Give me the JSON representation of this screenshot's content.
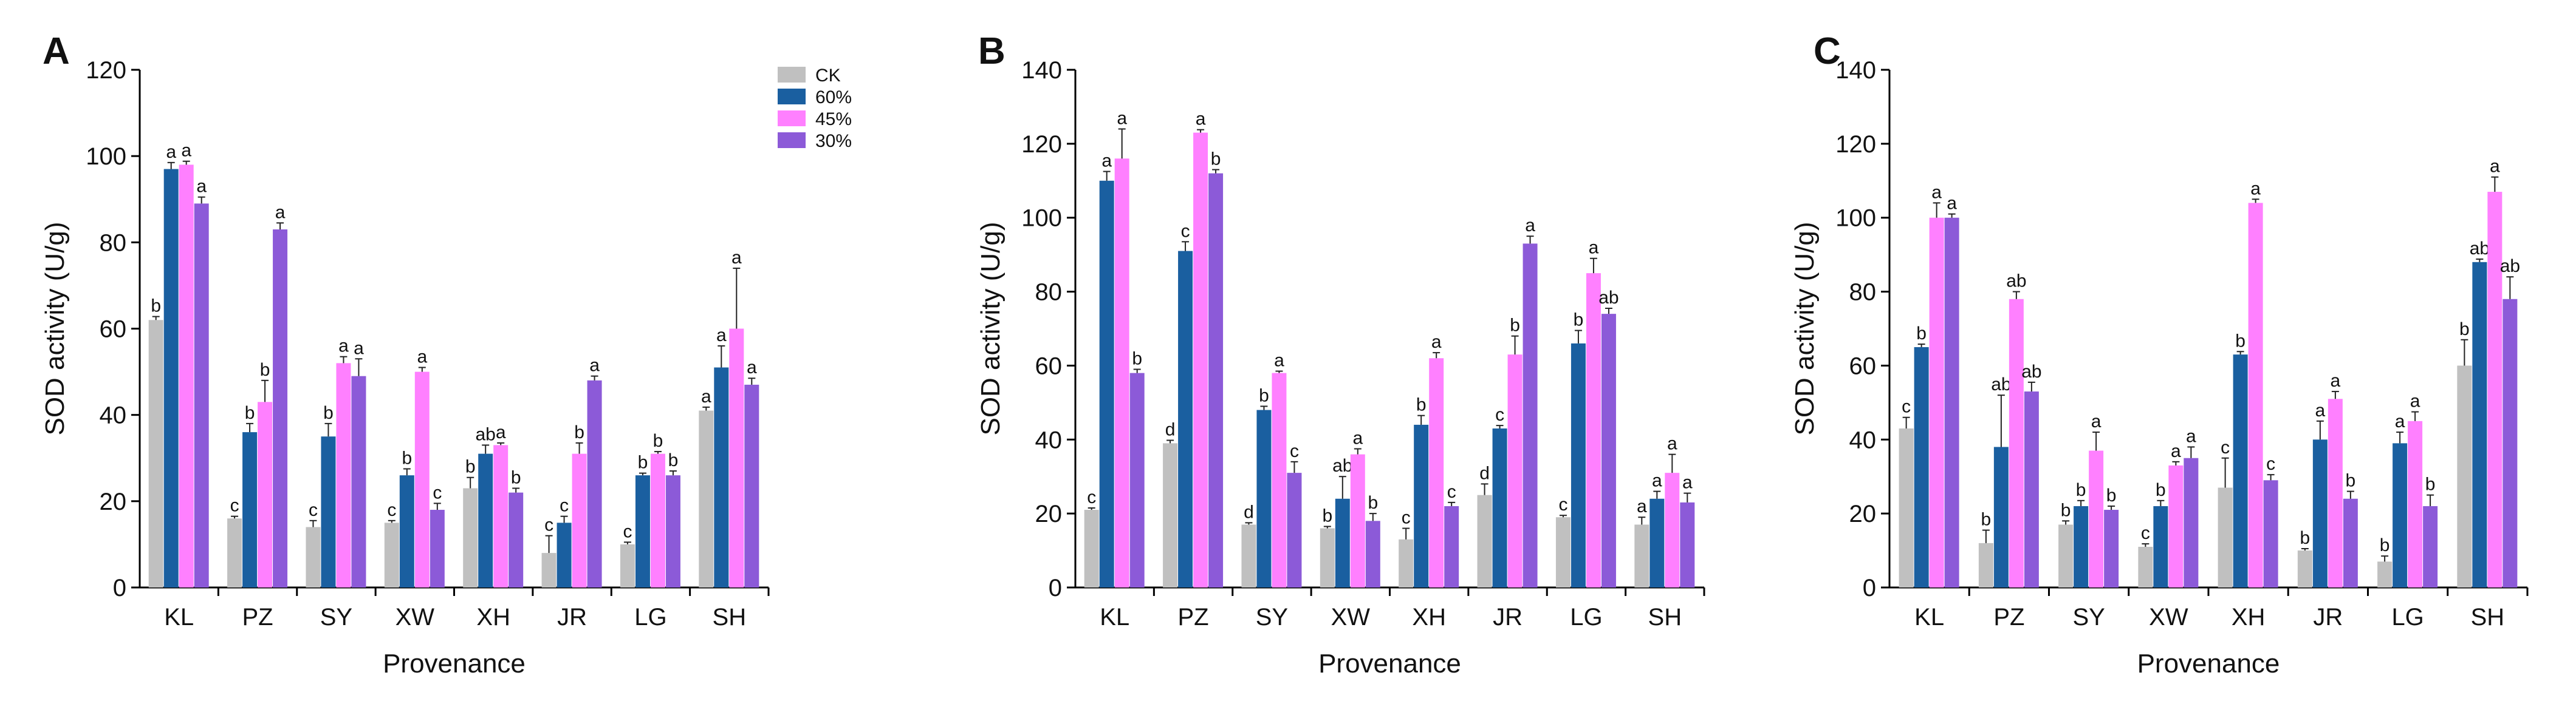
{
  "chart_data": [
    {
      "type": "bar",
      "panel": "A",
      "categories": [
        "KL",
        "PZ",
        "SY",
        "XW",
        "XH",
        "JR",
        "LG",
        "SH"
      ],
      "xlabel": "Provenance",
      "ylabel": "SOD activity (U/g)",
      "ylim": [
        0,
        120
      ],
      "yticks": [
        0,
        20,
        40,
        60,
        80,
        100,
        120
      ],
      "legend": {
        "position": "top-right"
      },
      "series": [
        {
          "name": "CK",
          "color": "#c0c0c0",
          "values": [
            62,
            16,
            14,
            15,
            23,
            8,
            10,
            41
          ],
          "errors": [
            0.8,
            0.5,
            1.5,
            0.5,
            2.5,
            4,
            0.5,
            0.8
          ],
          "labels": [
            "b",
            "c",
            "c",
            "c",
            "b",
            "c",
            "c",
            "a"
          ]
        },
        {
          "name": "60%",
          "color": "#1a5fa0",
          "values": [
            97,
            36,
            35,
            26,
            31,
            15,
            26,
            51
          ],
          "errors": [
            1.5,
            2,
            3,
            1.5,
            2,
            1.5,
            0.5,
            5
          ],
          "labels": [
            "a",
            "b",
            "b",
            "b",
            "ab",
            "c",
            "b",
            "a"
          ]
        },
        {
          "name": "45%",
          "color": "#ff80ff",
          "values": [
            98,
            43,
            52,
            50,
            33,
            31,
            31,
            60
          ],
          "errors": [
            0.8,
            5,
            1.5,
            1,
            0.5,
            2.5,
            0.5,
            14
          ],
          "labels": [
            "a",
            "b",
            "a",
            "a",
            "a",
            "b",
            "b",
            "a"
          ]
        },
        {
          "name": "30%",
          "color": "#8c5ad8",
          "values": [
            89,
            83,
            49,
            18,
            22,
            48,
            26,
            47
          ],
          "errors": [
            1.5,
            1.5,
            4,
            1.5,
            1,
            1,
            1,
            1.5
          ],
          "labels": [
            "a",
            "a",
            "a",
            "c",
            "b",
            "a",
            "b",
            "a"
          ]
        }
      ]
    },
    {
      "type": "bar",
      "panel": "B",
      "categories": [
        "KL",
        "PZ",
        "SY",
        "XW",
        "XH",
        "JR",
        "LG",
        "SH"
      ],
      "xlabel": "Provenance",
      "ylabel": "SOD activity (U/g)",
      "ylim": [
        0,
        140
      ],
      "yticks": [
        0,
        20,
        40,
        60,
        80,
        100,
        120,
        140
      ],
      "series": [
        {
          "name": "CK",
          "color": "#c0c0c0",
          "values": [
            21,
            39,
            17,
            16,
            13,
            25,
            19,
            17
          ],
          "errors": [
            0.5,
            0.8,
            0.5,
            0.5,
            3,
            3,
            0.5,
            2
          ],
          "labels": [
            "c",
            "d",
            "d",
            "b",
            "c",
            "d",
            "c",
            "a"
          ]
        },
        {
          "name": "60%",
          "color": "#1a5fa0",
          "values": [
            110,
            91,
            48,
            24,
            44,
            43,
            66,
            24
          ],
          "errors": [
            2.5,
            2.5,
            1,
            6,
            2.5,
            0.8,
            3.5,
            2
          ],
          "labels": [
            "a",
            "c",
            "b",
            "ab",
            "b",
            "c",
            "b",
            "a"
          ]
        },
        {
          "name": "45%",
          "color": "#ff80ff",
          "values": [
            116,
            123,
            58,
            36,
            62,
            63,
            85,
            31
          ],
          "errors": [
            8,
            0.8,
            0.5,
            1.5,
            1.5,
            5,
            4,
            5
          ],
          "labels": [
            "a",
            "a",
            "a",
            "a",
            "a",
            "b",
            "a",
            "a"
          ]
        },
        {
          "name": "30%",
          "color": "#8c5ad8",
          "values": [
            58,
            112,
            31,
            18,
            22,
            93,
            74,
            23
          ],
          "errors": [
            1,
            1,
            3,
            2,
            1,
            2,
            1.5,
            2.5
          ],
          "labels": [
            "b",
            "b",
            "c",
            "b",
            "c",
            "a",
            "ab",
            "a"
          ]
        }
      ]
    },
    {
      "type": "bar",
      "panel": "C",
      "categories": [
        "KL",
        "PZ",
        "SY",
        "XW",
        "XH",
        "JR",
        "LG",
        "SH"
      ],
      "xlabel": "Provenance",
      "ylabel": "SOD activity (U/g)",
      "ylim": [
        0,
        140
      ],
      "yticks": [
        0,
        20,
        40,
        60,
        80,
        100,
        120,
        140
      ],
      "series": [
        {
          "name": "CK",
          "color": "#c0c0c0",
          "values": [
            43,
            12,
            17,
            11,
            27,
            10,
            7,
            60
          ],
          "errors": [
            3,
            3.5,
            1,
            0.8,
            8,
            0.5,
            1.5,
            7
          ],
          "labels": [
            "c",
            "b",
            "b",
            "c",
            "c",
            "b",
            "b",
            "b"
          ]
        },
        {
          "name": "60%",
          "color": "#1a5fa0",
          "values": [
            65,
            38,
            22,
            22,
            63,
            40,
            39,
            88
          ],
          "errors": [
            0.8,
            14,
            1.5,
            1.5,
            0.8,
            5,
            3,
            0.8
          ],
          "labels": [
            "b",
            "ab",
            "b",
            "b",
            "b",
            "a",
            "a",
            "ab"
          ]
        },
        {
          "name": "45%",
          "color": "#ff80ff",
          "values": [
            100,
            78,
            37,
            33,
            104,
            51,
            45,
            107
          ],
          "errors": [
            4,
            2,
            5,
            1,
            1,
            2,
            2.5,
            4
          ],
          "labels": [
            "a",
            "ab",
            "a",
            "a",
            "a",
            "a",
            "a",
            "a"
          ]
        },
        {
          "name": "30%",
          "color": "#8c5ad8",
          "values": [
            100,
            53,
            21,
            35,
            29,
            24,
            22,
            78
          ],
          "errors": [
            1,
            2.5,
            1,
            3,
            1.5,
            2,
            3,
            6
          ],
          "labels": [
            "a",
            "ab",
            "b",
            "a",
            "c",
            "b",
            "b",
            "ab"
          ]
        }
      ]
    }
  ]
}
